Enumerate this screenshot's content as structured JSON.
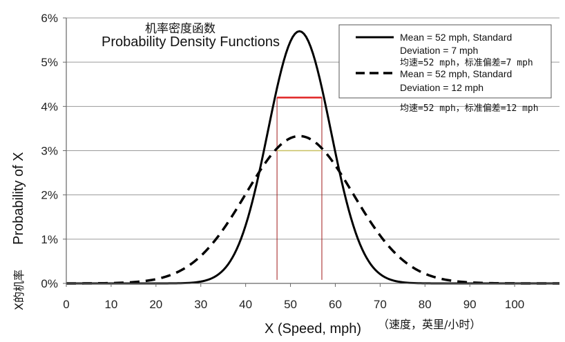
{
  "chart_data": {
    "type": "line",
    "title_cn": "机率密度函数",
    "title": "Probability Density Functions",
    "xlabel": "X (Speed, mph)",
    "xlabel_cn": "（速度，英里/小时）",
    "ylabel": "Probability of X",
    "ylabel_cn": "X的机率",
    "xlim": [
      0,
      110
    ],
    "ylim": [
      0,
      6
    ],
    "x_ticks": [
      0,
      10,
      20,
      30,
      40,
      50,
      60,
      70,
      80,
      90,
      100
    ],
    "x_tick_labels": [
      "0",
      "10",
      "20",
      "30",
      "40",
      "50",
      "60",
      "70",
      "80",
      "90",
      "100"
    ],
    "y_ticks": [
      0,
      1,
      2,
      3,
      4,
      5,
      6
    ],
    "y_tick_labels": [
      "0%",
      "1%",
      "2%",
      "3%",
      "4%",
      "5%",
      "6%"
    ],
    "grid": "horizontal",
    "legend_position": "top-right",
    "series": [
      {
        "name": "Mean = 52 mph, Standard Deviation = 7 mph",
        "name_line1": "Mean = 52 mph, Standard",
        "name_line2": "Deviation = 7 mph",
        "name_cn": "均速=52 mph，标准偏差=7 mph",
        "style": "solid",
        "mean": 52,
        "sd": 7,
        "peak_percent": 5.7
      },
      {
        "name": "Mean = 52 mph, Standard Deviation = 12 mph",
        "name_line1": "Mean = 52 mph, Standard",
        "name_line2": "Deviation = 12 mph",
        "name_cn": "均速=52 mph，标准偏差=12 mph",
        "style": "dashed",
        "mean": 52,
        "sd": 12,
        "peak_percent": 3.33
      }
    ],
    "annotations": [
      {
        "type": "vertical-line",
        "x": 47,
        "color": "#a01818"
      },
      {
        "type": "vertical-line",
        "x": 57,
        "color": "#a01818"
      },
      {
        "type": "horizontal-segment",
        "x1": 47,
        "x2": 57,
        "y": 4.2,
        "color": "#e02020"
      },
      {
        "type": "horizontal-segment",
        "x1": 47,
        "x2": 57,
        "y": 3.0,
        "color": "#c8c060"
      }
    ]
  }
}
